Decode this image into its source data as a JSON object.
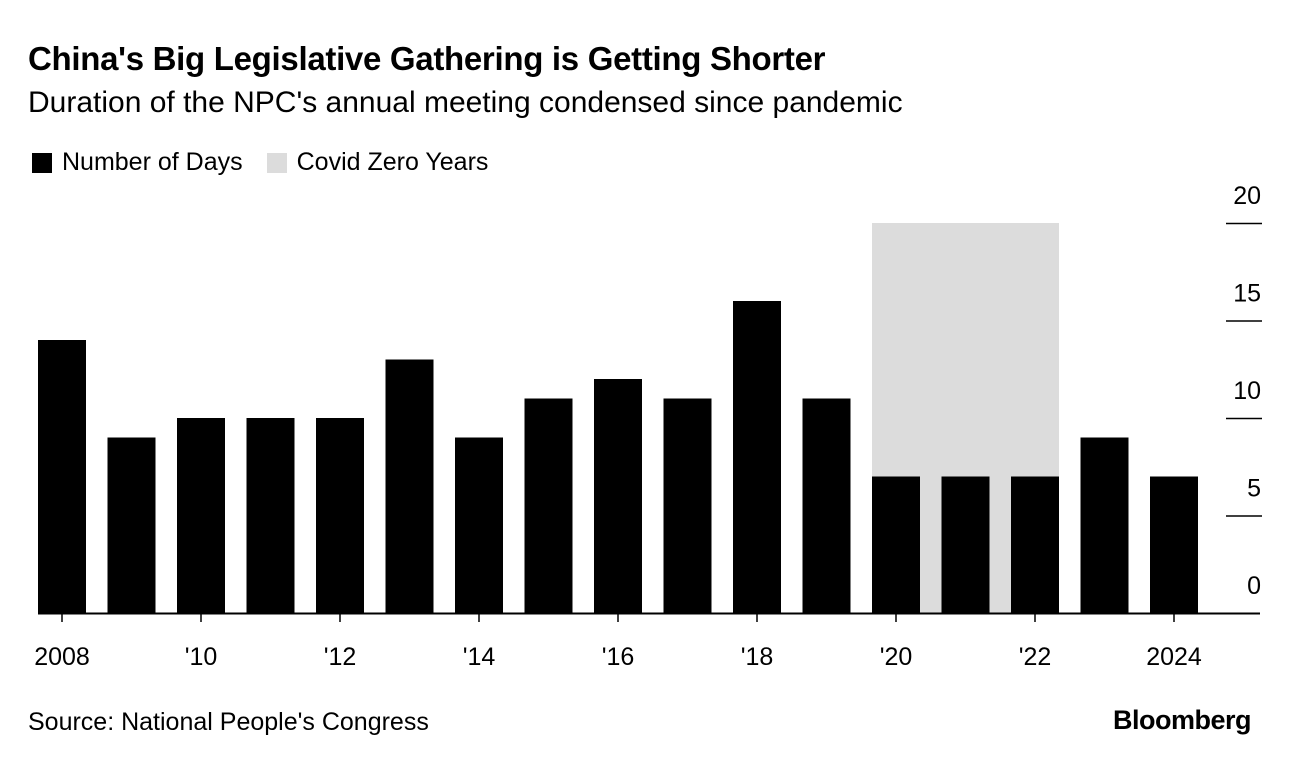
{
  "header": {
    "title": "China's Big Legislative Gathering is Getting Shorter",
    "subtitle": "Duration of the NPC's annual meeting condensed since pandemic"
  },
  "legend": {
    "items": [
      {
        "label": "Number of Days",
        "color": "#000000"
      },
      {
        "label": "Covid Zero Years",
        "color": "#dcdcdc"
      }
    ]
  },
  "footer": {
    "source": "Source: National People's Congress",
    "brand": "Bloomberg"
  },
  "chart_data": {
    "type": "bar",
    "title": "China's Big Legislative Gathering is Getting Shorter",
    "subtitle": "Duration of the NPC's annual meeting condensed since pandemic",
    "xlabel": "",
    "ylabel": "",
    "categories": [
      "2008",
      "2009",
      "2010",
      "2011",
      "2012",
      "2013",
      "2014",
      "2015",
      "2016",
      "2017",
      "2018",
      "2019",
      "2020",
      "2021",
      "2022",
      "2023",
      "2024"
    ],
    "series": [
      {
        "name": "Number of Days",
        "color": "#000000",
        "values": [
          14,
          9,
          10,
          10,
          10,
          13,
          9,
          11,
          12,
          11,
          16,
          11,
          7,
          7,
          7,
          9,
          7
        ]
      }
    ],
    "shaded_range": {
      "name": "Covid Zero Years",
      "from": "2020",
      "to": "2022",
      "color": "#dcdcdc"
    },
    "x_tick_labels": [
      {
        "category": "2008",
        "label": "2008"
      },
      {
        "category": "2010",
        "label": "'10"
      },
      {
        "category": "2012",
        "label": "'12"
      },
      {
        "category": "2014",
        "label": "'14"
      },
      {
        "category": "2016",
        "label": "'16"
      },
      {
        "category": "2018",
        "label": "'18"
      },
      {
        "category": "2020",
        "label": "'20"
      },
      {
        "category": "2022",
        "label": "'22"
      },
      {
        "category": "2024",
        "label": "2024"
      }
    ],
    "y_ticks": [
      0,
      5,
      10,
      15,
      20
    ],
    "ylim": [
      0,
      20
    ],
    "y_axis_position": "right",
    "grid": false,
    "legend_position": "top-left"
  }
}
